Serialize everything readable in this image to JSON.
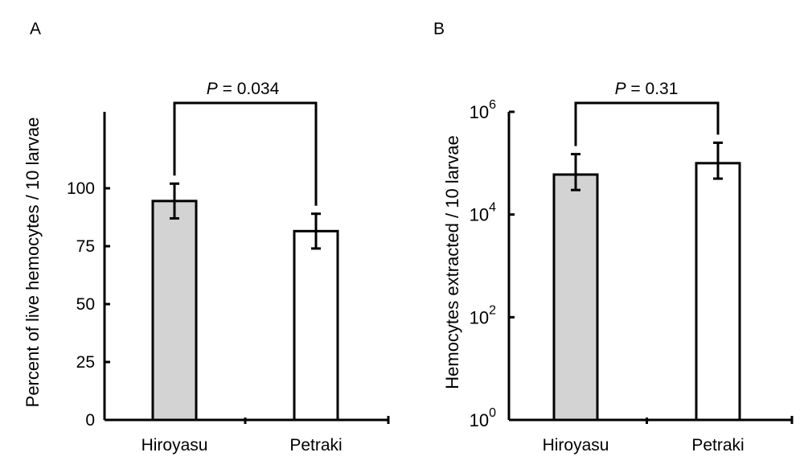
{
  "chart_data": [
    {
      "panel_label": "A",
      "type": "bar",
      "categories": [
        "Hiroyasu",
        "Petraki"
      ],
      "values": [
        94.5,
        81.5
      ],
      "error": [
        7.5,
        7.5
      ],
      "colors": [
        "#d3d3d3",
        "#ffffff"
      ],
      "ylabel": "Percent of live hemocytes / 10 larvae",
      "ylim": [
        0,
        133
      ],
      "yticks": [
        0,
        25,
        50,
        75,
        100
      ],
      "ytick_labels": [
        "0",
        "25",
        "50",
        "75",
        "100"
      ],
      "scale": "linear",
      "grid": false,
      "significance": {
        "p_symbol": "P",
        "p_text": " = 0.034"
      }
    },
    {
      "panel_label": "B",
      "type": "bar",
      "categories": [
        "Hiroyasu",
        "Petraki"
      ],
      "values": [
        60000,
        100000
      ],
      "error_low": [
        30000,
        50000
      ],
      "error_high": [
        150000,
        250000
      ],
      "colors": [
        "#d3d3d3",
        "#ffffff"
      ],
      "ylabel": "Hemocytes extracted / 10 larvae",
      "ylim": [
        1,
        1000000
      ],
      "yticks": [
        1,
        100,
        10000,
        1000000
      ],
      "ytick_base": "10",
      "ytick_exponents": [
        "0",
        "2",
        "4",
        "6"
      ],
      "scale": "log",
      "grid": false,
      "significance": {
        "p_symbol": "P",
        "p_text": " = 0.31"
      }
    }
  ]
}
